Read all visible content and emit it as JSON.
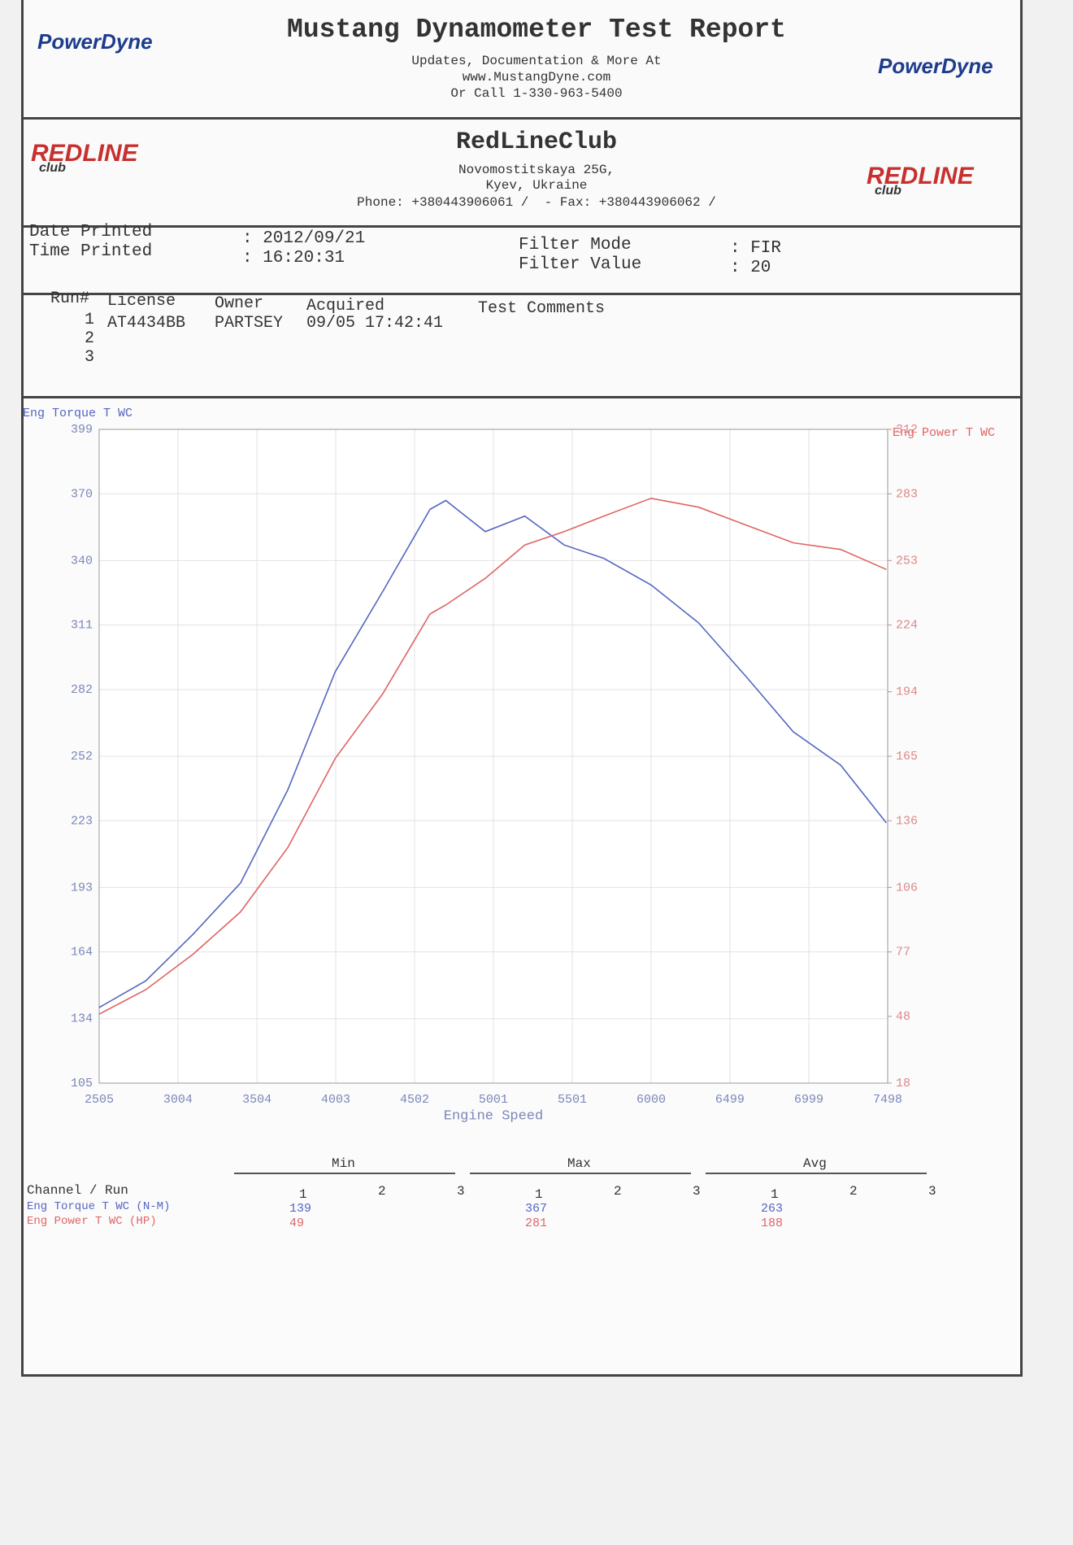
{
  "header": {
    "title": "Mustang Dynamometer Test Report",
    "lines": [
      "Updates, Documentation & More At",
      "www.MustangDyne.com",
      "Or Call 1-330-963-5400"
    ],
    "logo": "PowerDyne"
  },
  "shop": {
    "name": "RedLineClub",
    "lines": [
      "Novomostitskaya 25G,",
      "Kyev, Ukraine",
      "Phone: +380443906061 /  - Fax: +380443906062 /"
    ],
    "logo": "REDLINE",
    "logo_sub": "club"
  },
  "info": [
    [
      "Date Printed",
      ": 2012/09/21"
    ],
    [
      "Time Printed",
      ": 16:20:31"
    ],
    [
      "Filter Mode",
      ": FIR"
    ],
    [
      "Filter Value",
      ": 20"
    ]
  ],
  "runs": {
    "headers": [
      "Run#",
      "License",
      "Owner",
      "Acquired",
      "Test Comments"
    ],
    "rows": [
      [
        "1",
        "AT4434BB",
        "PARTSEY",
        "09/05 17:42:41"
      ],
      [
        "2"
      ],
      [
        "3"
      ]
    ]
  },
  "chart_data": {
    "type": "line",
    "xlabel": "Engine Speed",
    "x": [
      2505,
      2800,
      3100,
      3400,
      3700,
      4000,
      4300,
      4600,
      4700,
      4950,
      5200,
      5450,
      5700,
      6000,
      6300,
      6600,
      6900,
      7200,
      7490
    ],
    "xlim": [
      2505,
      7498
    ],
    "xticks": [
      2505,
      3004,
      3504,
      4003,
      4502,
      5001,
      5501,
      6000,
      6499,
      6999,
      7498
    ],
    "ylim": [
      105,
      399
    ],
    "yticks": [
      105,
      134,
      164,
      193,
      223,
      252,
      282,
      311,
      340,
      370,
      399
    ],
    "y2lim": [
      18,
      312
    ],
    "y2ticks": [
      18,
      48,
      77,
      106,
      136,
      165,
      194,
      224,
      253,
      283,
      312
    ],
    "grid": true,
    "series": [
      {
        "name": "Eng Torque T WC",
        "color": "#5566c0",
        "values": [
          139,
          151,
          172,
          195,
          237,
          290,
          326,
          363,
          367,
          353,
          360,
          347,
          341,
          329,
          312,
          288,
          263,
          248,
          222
        ]
      },
      {
        "name": "Eng Power T WC",
        "color": "#e06464",
        "axis": "y2",
        "values": [
          49,
          60,
          76,
          95,
          124,
          164,
          193,
          229,
          233,
          245,
          260,
          266,
          273,
          281,
          277,
          269,
          261,
          258,
          249
        ]
      }
    ]
  },
  "stats": {
    "corner": "Channel / Run",
    "groups": [
      "Min",
      "Max",
      "Avg"
    ],
    "runs": [
      "1",
      "2",
      "3"
    ],
    "rows": [
      {
        "channel": "Eng Torque T WC (N-M)",
        "color": "#5566c0",
        "min": 139,
        "max": 367,
        "avg": 263
      },
      {
        "channel": "Eng Power T WC (HP)",
        "color": "#e06464",
        "min": 49,
        "max": 281,
        "avg": 188
      }
    ]
  }
}
